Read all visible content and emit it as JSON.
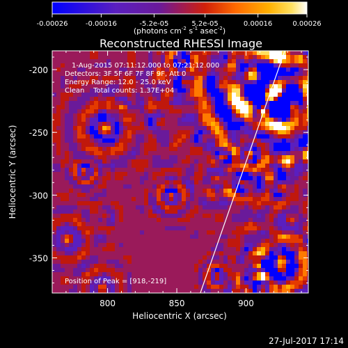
{
  "colorbar": {
    "tick_labels": [
      "-0.00026",
      "-0.00016",
      "-5.2e-05",
      "5.2e-05",
      "0.00016",
      "0.00026"
    ],
    "range": [
      -0.00026,
      0.00026
    ],
    "units_prefix": "(photons cm",
    "units_exp1": "-2",
    "units_mid": " s",
    "units_exp2": "-1",
    "units_mid2": " asec",
    "units_exp3": "-2",
    "units_suffix": ")",
    "colors": [
      "#0000ff",
      "#5a1fbf",
      "#6a1a9a",
      "#9a1a5a",
      "#c0180c",
      "#e43a00",
      "#ff7a00",
      "#ffb000",
      "#ffe060",
      "#ffffff"
    ]
  },
  "title": "Reconstructed RHESSI Image",
  "info": {
    "time_range": "1-Aug-2015 07:11:12.000 to 07:21:12.000",
    "detectors": "Detectors: 3F 5F 6F 7F 8F 9F, Att 0",
    "energy": "Energy Range: 12.0 - 25.0 keV",
    "clean": "Clean    Total counts: 1.37E+04",
    "peak": "Position of Peak = [918,-219]"
  },
  "axes": {
    "xlabel": "Heliocentric X (arcsec)",
    "ylabel": "Heliocentric Y (arcsec)",
    "x_ticks": [
      {
        "value": 800,
        "label": "800"
      },
      {
        "value": 850,
        "label": "850"
      },
      {
        "value": 900,
        "label": "900"
      }
    ],
    "y_ticks": [
      {
        "value": -200,
        "label": "-200"
      },
      {
        "value": -250,
        "label": "-250"
      },
      {
        "value": -300,
        "label": "-300"
      },
      {
        "value": -350,
        "label": "-350"
      }
    ],
    "xlim": [
      760,
      945
    ],
    "ylim": [
      -378,
      -185
    ]
  },
  "limb_line": {
    "x1": 867,
    "y1": -378,
    "x2": 928,
    "y2": -185
  },
  "footer_timestamp": "27-Jul-2017 17:14"
}
